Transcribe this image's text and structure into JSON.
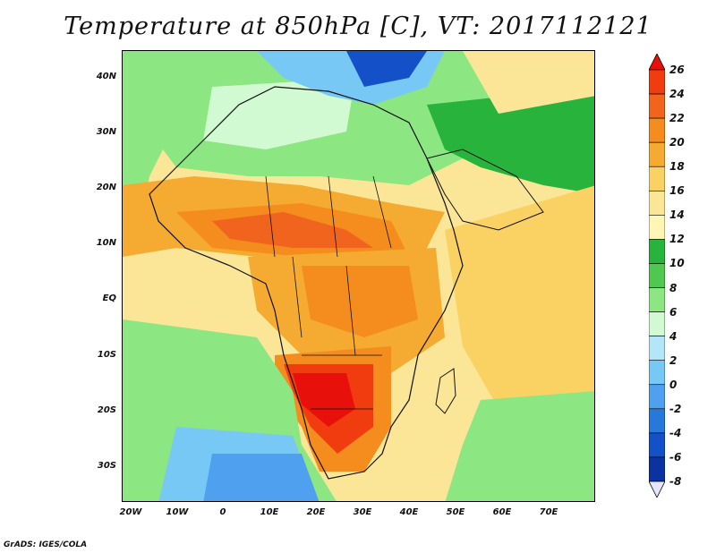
{
  "title": "Temperature at 850hPa [C], VT: 2017112121",
  "credit": "GrADS: IGES/COLA",
  "lat_labels": [
    "40N",
    "30N",
    "20N",
    "10N",
    "EQ",
    "10S",
    "20S",
    "30S"
  ],
  "lon_labels": [
    "20W",
    "10W",
    "0",
    "10E",
    "20E",
    "30E",
    "40E",
    "50E",
    "60E",
    "70E"
  ],
  "colorbar": {
    "labels": [
      "26",
      "24",
      "22",
      "20",
      "18",
      "16",
      "14",
      "12",
      "10",
      "8",
      "6",
      "4",
      "2",
      "0",
      "-2",
      "-4",
      "-6",
      "-8"
    ],
    "colors": [
      "#e8100a",
      "#f03c0f",
      "#f0641e",
      "#f58c1e",
      "#f5aa32",
      "#fad264",
      "#fae696",
      "#fff5b4",
      "#28b43c",
      "#50c850",
      "#8ce682",
      "#d2fad2",
      "#b4e6fa",
      "#78c8f5",
      "#50a0f0",
      "#2878dc",
      "#1450c8",
      "#0a32a0",
      "#0a1478"
    ]
  },
  "regions": {
    "ocean_west": "#8ce682",
    "sahara": "#8ce682",
    "mediterranean": "#1450c8",
    "sahel": "#f58c1e",
    "central_africa": "#f5aa32",
    "southern_africa": "#f03c0f",
    "south_atlantic": "#50a0f0",
    "arabia": "#28b43c",
    "indian_ocean": "#fad264"
  }
}
